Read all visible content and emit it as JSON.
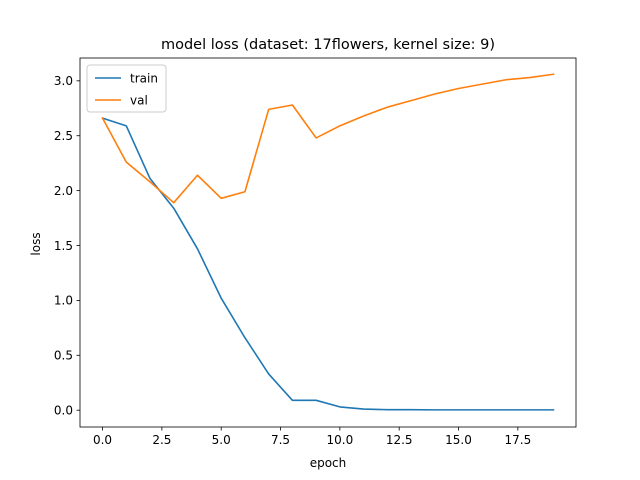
{
  "chart_data": {
    "type": "line",
    "title": "model loss (dataset: 17flowers, kernel size: 9)",
    "xlabel": "epoch",
    "ylabel": "loss",
    "xlim": [
      -0.95,
      19.95
    ],
    "ylim": [
      -0.153,
      3.208
    ],
    "xticks": [
      0,
      2.5,
      5,
      7.5,
      10,
      12.5,
      15,
      17.5
    ],
    "xtick_labels": [
      "0.0",
      "2.5",
      "5.0",
      "7.5",
      "10.0",
      "12.5",
      "15.0",
      "17.5"
    ],
    "yticks": [
      0,
      0.5,
      1,
      1.5,
      2,
      2.5,
      3
    ],
    "ytick_labels": [
      "0.0",
      "0.5",
      "1.0",
      "1.5",
      "2.0",
      "2.5",
      "3.0"
    ],
    "grid": false,
    "legend_position": "upper-left",
    "x": [
      0,
      1,
      2,
      3,
      4,
      5,
      6,
      7,
      8,
      9,
      10,
      11,
      12,
      13,
      14,
      15,
      16,
      17,
      18,
      19
    ],
    "series": [
      {
        "name": "train",
        "color": "#1f77b4",
        "values": [
          2.66,
          2.59,
          2.11,
          1.84,
          1.47,
          1.02,
          0.66,
          0.33,
          0.09,
          0.09,
          0.03,
          0.01,
          0.005,
          0.005,
          0.003,
          0.003,
          0.003,
          0.003,
          0.003,
          0.003
        ]
      },
      {
        "name": "val",
        "color": "#ff7f0e",
        "values": [
          2.66,
          2.26,
          2.08,
          1.89,
          2.14,
          1.93,
          1.99,
          2.74,
          2.78,
          2.48,
          2.59,
          2.68,
          2.76,
          2.82,
          2.88,
          2.93,
          2.97,
          3.01,
          3.03,
          3.06
        ]
      }
    ]
  }
}
